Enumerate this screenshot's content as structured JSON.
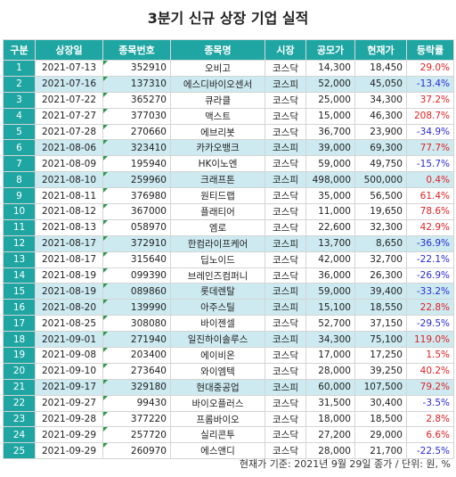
{
  "title": "3분기 신규 상장 기업 실적",
  "columns": [
    "구분",
    "상장일",
    "종목번호",
    "종목명",
    "시장",
    "공모가",
    "현재가",
    "등락률"
  ],
  "rows": [
    {
      "num": "1",
      "date": "2021-07-13",
      "code": "352910",
      "name": "오비고",
      "market": "코스닥",
      "ipo": "14,300",
      "current": "18,450",
      "change": "29.0%",
      "dir": "pos",
      "hl": false
    },
    {
      "num": "2",
      "date": "2021-07-16",
      "code": "137310",
      "name": "에스디바이오센서",
      "market": "코스피",
      "ipo": "52,000",
      "current": "45,050",
      "change": "-13.4%",
      "dir": "neg",
      "hl": true
    },
    {
      "num": "3",
      "date": "2021-07-22",
      "code": "365270",
      "name": "큐라클",
      "market": "코스닥",
      "ipo": "25,000",
      "current": "34,300",
      "change": "37.2%",
      "dir": "pos",
      "hl": false
    },
    {
      "num": "4",
      "date": "2021-07-27",
      "code": "377030",
      "name": "맥스트",
      "market": "코스닥",
      "ipo": "15,000",
      "current": "46,300",
      "change": "208.7%",
      "dir": "pos",
      "hl": false
    },
    {
      "num": "5",
      "date": "2021-07-28",
      "code": "270660",
      "name": "에브리봇",
      "market": "코스닥",
      "ipo": "36,700",
      "current": "23,900",
      "change": "-34.9%",
      "dir": "neg",
      "hl": false
    },
    {
      "num": "6",
      "date": "2021-08-06",
      "code": "323410",
      "name": "카카오뱅크",
      "market": "코스피",
      "ipo": "39,000",
      "current": "69,300",
      "change": "77.7%",
      "dir": "pos",
      "hl": true
    },
    {
      "num": "7",
      "date": "2021-08-09",
      "code": "195940",
      "name": "HK이노엔",
      "market": "코스닥",
      "ipo": "59,000",
      "current": "49,750",
      "change": "-15.7%",
      "dir": "neg",
      "hl": false
    },
    {
      "num": "8",
      "date": "2021-08-10",
      "code": "259960",
      "name": "크래프톤",
      "market": "코스피",
      "ipo": "498,000",
      "current": "500,000",
      "change": "0.4%",
      "dir": "pos",
      "hl": true
    },
    {
      "num": "9",
      "date": "2021-08-11",
      "code": "376980",
      "name": "원티드랩",
      "market": "코스닥",
      "ipo": "35,000",
      "current": "56,500",
      "change": "61.4%",
      "dir": "pos",
      "hl": false
    },
    {
      "num": "10",
      "date": "2021-08-12",
      "code": "367000",
      "name": "플래티어",
      "market": "코스닥",
      "ipo": "11,000",
      "current": "19,650",
      "change": "78.6%",
      "dir": "pos",
      "hl": false
    },
    {
      "num": "11",
      "date": "2021-08-13",
      "code": "058970",
      "name": "엠로",
      "market": "코스닥",
      "ipo": "22,600",
      "current": "32,300",
      "change": "42.9%",
      "dir": "pos",
      "hl": false
    },
    {
      "num": "12",
      "date": "2021-08-17",
      "code": "372910",
      "name": "한컴라이프케어",
      "market": "코스피",
      "ipo": "13,700",
      "current": "8,650",
      "change": "-36.9%",
      "dir": "neg",
      "hl": true
    },
    {
      "num": "13",
      "date": "2021-08-17",
      "code": "315640",
      "name": "딥노이드",
      "market": "코스닥",
      "ipo": "42,000",
      "current": "32,700",
      "change": "-22.1%",
      "dir": "neg",
      "hl": false
    },
    {
      "num": "14",
      "date": "2021-08-19",
      "code": "099390",
      "name": "브레인즈컴퍼니",
      "market": "코스닥",
      "ipo": "36,000",
      "current": "26,300",
      "change": "-26.9%",
      "dir": "neg",
      "hl": false
    },
    {
      "num": "15",
      "date": "2021-08-19",
      "code": "089860",
      "name": "롯데렌탈",
      "market": "코스피",
      "ipo": "59,000",
      "current": "39,400",
      "change": "-33.2%",
      "dir": "neg",
      "hl": true
    },
    {
      "num": "16",
      "date": "2021-08-20",
      "code": "139990",
      "name": "아주스틸",
      "market": "코스피",
      "ipo": "15,100",
      "current": "18,550",
      "change": "22.8%",
      "dir": "pos",
      "hl": true
    },
    {
      "num": "17",
      "date": "2021-08-25",
      "code": "308080",
      "name": "바이젠셀",
      "market": "코스닥",
      "ipo": "52,700",
      "current": "37,150",
      "change": "-29.5%",
      "dir": "neg",
      "hl": false
    },
    {
      "num": "18",
      "date": "2021-09-01",
      "code": "271940",
      "name": "일진하이솔루스",
      "market": "코스피",
      "ipo": "34,300",
      "current": "75,100",
      "change": "119.0%",
      "dir": "pos",
      "hl": true
    },
    {
      "num": "19",
      "date": "2021-09-08",
      "code": "203400",
      "name": "에이비온",
      "market": "코스닥",
      "ipo": "17,000",
      "current": "17,250",
      "change": "1.5%",
      "dir": "pos",
      "hl": false
    },
    {
      "num": "20",
      "date": "2021-09-10",
      "code": "273640",
      "name": "와이엠텍",
      "market": "코스닥",
      "ipo": "28,000",
      "current": "39,250",
      "change": "40.2%",
      "dir": "pos",
      "hl": false
    },
    {
      "num": "21",
      "date": "2021-09-17",
      "code": "329180",
      "name": "현대중공업",
      "market": "코스피",
      "ipo": "60,000",
      "current": "107,500",
      "change": "79.2%",
      "dir": "pos",
      "hl": true
    },
    {
      "num": "22",
      "date": "2021-09-27",
      "code": "99430",
      "name": "바이오플러스",
      "market": "코스닥",
      "ipo": "31,500",
      "current": "30,400",
      "change": "-3.5%",
      "dir": "neg",
      "hl": false
    },
    {
      "num": "23",
      "date": "2021-09-28",
      "code": "377220",
      "name": "프롬바이오",
      "market": "코스닥",
      "ipo": "18,000",
      "current": "18,500",
      "change": "2.8%",
      "dir": "pos",
      "hl": false
    },
    {
      "num": "24",
      "date": "2021-09-29",
      "code": "257720",
      "name": "실리콘투",
      "market": "코스닥",
      "ipo": "27,200",
      "current": "29,000",
      "change": "6.6%",
      "dir": "pos",
      "hl": false
    },
    {
      "num": "25",
      "date": "2021-09-29",
      "code": "260970",
      "name": "에스앤디",
      "market": "코스닥",
      "ipo": "28,000",
      "current": "21,700",
      "change": "-22.5%",
      "dir": "neg",
      "hl": false
    }
  ],
  "footer": "현재가 기준: 2021년 9월 29일 종가 / 단위: 원, %",
  "colors": {
    "header_bg": "#1fa6a3",
    "highlight_row": "#cdeaf1",
    "positive": "#e12121",
    "negative": "#2b2bd6"
  }
}
